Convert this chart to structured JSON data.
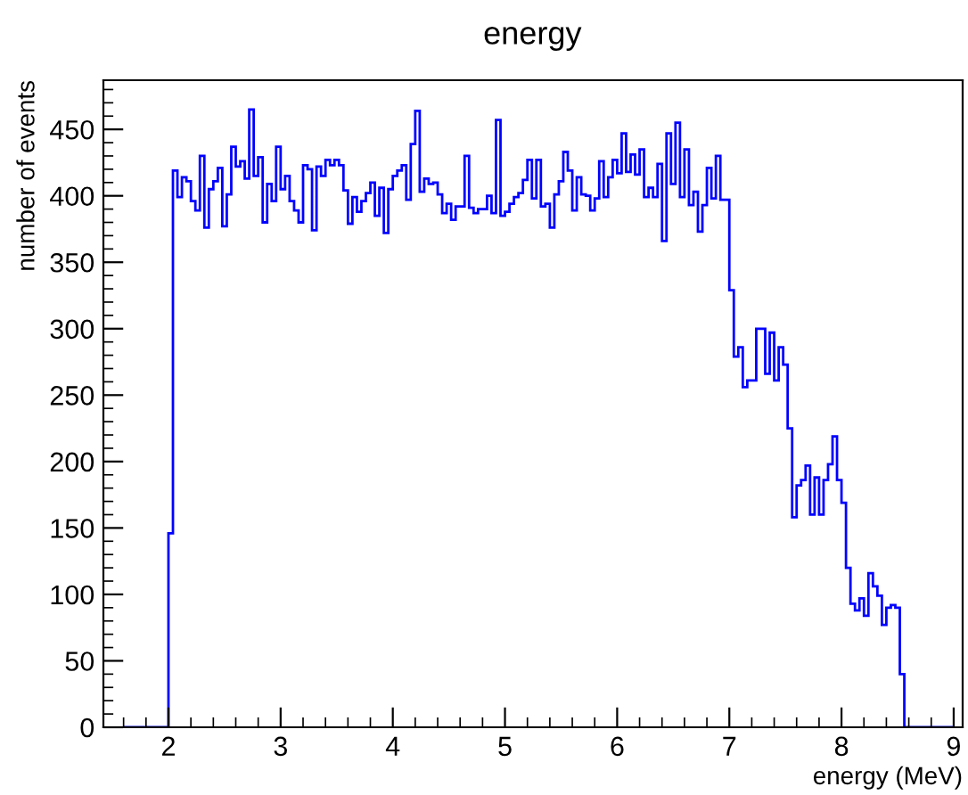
{
  "chart_data": {
    "type": "histogram",
    "title": "energy",
    "xlabel": "energy (MeV)",
    "ylabel": "number of events",
    "color": "#0000ff",
    "bins": [
      1.6,
      1.64,
      1.68,
      1.72,
      1.76,
      1.8,
      1.84,
      1.88,
      1.92,
      1.96,
      2.0,
      2.04,
      2.08,
      2.12,
      2.16,
      2.2,
      2.24,
      2.28,
      2.32,
      2.36,
      2.4,
      2.44,
      2.48,
      2.52,
      2.56,
      2.6,
      2.64,
      2.68,
      2.72,
      2.76,
      2.8,
      2.84,
      2.88,
      2.92,
      2.96,
      3.0,
      3.04,
      3.08,
      3.12,
      3.16,
      3.2,
      3.24,
      3.28,
      3.32,
      3.36,
      3.4,
      3.44,
      3.48,
      3.52,
      3.56,
      3.6,
      3.64,
      3.68,
      3.72,
      3.76,
      3.8,
      3.84,
      3.88,
      3.92,
      3.96,
      4.0,
      4.04,
      4.08,
      4.12,
      4.16,
      4.2,
      4.24,
      4.28,
      4.32,
      4.36,
      4.4,
      4.44,
      4.48,
      4.52,
      4.56,
      4.6,
      4.64,
      4.68,
      4.72,
      4.76,
      4.8,
      4.84,
      4.88,
      4.92,
      4.96,
      5.0,
      5.04,
      5.08,
      5.12,
      5.16,
      5.2,
      5.24,
      5.28,
      5.32,
      5.36,
      5.4,
      5.44,
      5.48,
      5.52,
      5.56,
      5.6,
      5.64,
      5.68,
      5.72,
      5.76,
      5.8,
      5.84,
      5.88,
      5.92,
      5.96,
      6.0,
      6.04,
      6.08,
      6.12,
      6.16,
      6.2,
      6.24,
      6.28,
      6.32,
      6.36,
      6.4,
      6.44,
      6.48,
      6.52,
      6.56,
      6.6,
      6.64,
      6.68,
      6.72,
      6.76,
      6.8,
      6.84,
      6.88,
      6.92,
      6.96,
      7.0,
      7.04,
      7.08,
      7.12,
      7.16,
      7.2,
      7.24,
      7.28,
      7.32,
      7.36,
      7.4,
      7.44,
      7.48,
      7.52,
      7.56,
      7.6,
      7.64,
      7.68,
      7.72,
      7.76,
      7.8,
      7.84,
      7.88,
      7.92,
      7.96,
      8.0,
      8.04,
      8.08,
      8.12,
      8.16,
      8.2,
      8.24,
      8.28,
      8.32,
      8.36,
      8.4,
      8.44,
      8.48,
      8.52,
      8.56,
      8.6,
      8.64,
      8.68,
      8.72,
      8.76,
      8.8,
      8.84,
      8.88,
      8.92,
      8.96,
      9.0
    ],
    "values": [
      0,
      0,
      0,
      0,
      0,
      0,
      0,
      0,
      0,
      0,
      146,
      419,
      399,
      414,
      411,
      396,
      389,
      430,
      376,
      405,
      411,
      421,
      377,
      401,
      437,
      422,
      426,
      413,
      465,
      415,
      429,
      380,
      409,
      396,
      437,
      405,
      415,
      396,
      389,
      380,
      423,
      420,
      374,
      422,
      415,
      427,
      423,
      427,
      423,
      404,
      379,
      399,
      388,
      396,
      402,
      410,
      385,
      406,
      372,
      405,
      415,
      419,
      423,
      397,
      439,
      464,
      403,
      413,
      409,
      410,
      401,
      387,
      394,
      382,
      392,
      392,
      430,
      391,
      387,
      390,
      390,
      400,
      387,
      457,
      385,
      388,
      394,
      399,
      402,
      412,
      427,
      398,
      427,
      392,
      394,
      376,
      401,
      411,
      433,
      419,
      389,
      414,
      401,
      400,
      389,
      398,
      426,
      399,
      414,
      427,
      417,
      447,
      418,
      431,
      416,
      435,
      399,
      406,
      399,
      424,
      366,
      447,
      409,
      455,
      399,
      435,
      393,
      403,
      373,
      393,
      421,
      398,
      430,
      397,
      397,
      329,
      279,
      286,
      256,
      261,
      261,
      300,
      300,
      266,
      297,
      261,
      286,
      273,
      225,
      158,
      182,
      186,
      197,
      160,
      188,
      160,
      186,
      198,
      219,
      186,
      169,
      120,
      93,
      88,
      97,
      84,
      116,
      106,
      99,
      77,
      90,
      92,
      90,
      40,
      0,
      0,
      0,
      0,
      0,
      0,
      0,
      0,
      0,
      0,
      0
    ],
    "xlim": [
      1.42,
      9.08
    ],
    "xticks": [
      2,
      3,
      4,
      5,
      6,
      7,
      8,
      9
    ],
    "ylim": [
      0,
      487
    ],
    "yticks": [
      0,
      50,
      100,
      150,
      200,
      250,
      300,
      350,
      400,
      450
    ],
    "grid": false
  }
}
